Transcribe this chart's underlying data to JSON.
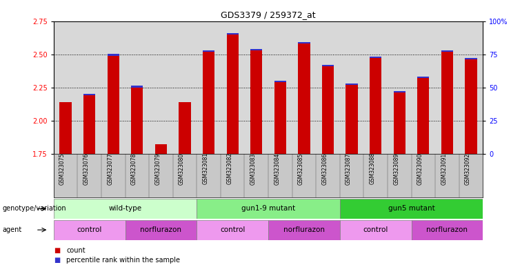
{
  "title": "GDS3379 / 259372_at",
  "samples": [
    "GSM323075",
    "GSM323076",
    "GSM323077",
    "GSM323078",
    "GSM323079",
    "GSM323080",
    "GSM323081",
    "GSM323082",
    "GSM323083",
    "GSM323084",
    "GSM323085",
    "GSM323086",
    "GSM323087",
    "GSM323088",
    "GSM323089",
    "GSM323090",
    "GSM323091",
    "GSM323092"
  ],
  "counts": [
    2.14,
    2.19,
    2.49,
    2.25,
    1.82,
    2.14,
    2.52,
    2.65,
    2.53,
    2.29,
    2.58,
    2.41,
    2.27,
    2.47,
    2.21,
    2.32,
    2.52,
    2.46
  ],
  "has_percentile": [
    false,
    true,
    true,
    true,
    false,
    false,
    true,
    true,
    true,
    true,
    true,
    true,
    true,
    true,
    true,
    true,
    true,
    true
  ],
  "ymin": 1.75,
  "ymax": 2.75,
  "yticks_left": [
    1.75,
    2.0,
    2.25,
    2.5,
    2.75
  ],
  "yticks_right": [
    0,
    25,
    50,
    75,
    100
  ],
  "ytick_labels_right": [
    "0",
    "25",
    "50",
    "75",
    "100%"
  ],
  "bar_color": "#cc0000",
  "percentile_color": "#3333cc",
  "bar_width": 0.5,
  "pct_bar_height": 0.012,
  "genotype_groups": [
    {
      "label": "wild-type",
      "start": 0,
      "end": 5,
      "color": "#ccffcc"
    },
    {
      "label": "gun1-9 mutant",
      "start": 6,
      "end": 11,
      "color": "#88ee88"
    },
    {
      "label": "gun5 mutant",
      "start": 12,
      "end": 17,
      "color": "#33cc33"
    }
  ],
  "agent_groups": [
    {
      "label": "control",
      "start": 0,
      "end": 2,
      "color": "#ee99ee"
    },
    {
      "label": "norflurazon",
      "start": 3,
      "end": 5,
      "color": "#cc55cc"
    },
    {
      "label": "control",
      "start": 6,
      "end": 8,
      "color": "#ee99ee"
    },
    {
      "label": "norflurazon",
      "start": 9,
      "end": 11,
      "color": "#cc55cc"
    },
    {
      "label": "control",
      "start": 12,
      "end": 14,
      "color": "#ee99ee"
    },
    {
      "label": "norflurazon",
      "start": 15,
      "end": 17,
      "color": "#cc55cc"
    }
  ],
  "legend_items": [
    {
      "label": "count",
      "color": "#cc0000"
    },
    {
      "label": "percentile rank within the sample",
      "color": "#3333cc"
    }
  ],
  "label_genotype": "genotype/variation",
  "label_agent": "agent",
  "bg_color": "#ffffff",
  "plot_bg_color": "#d8d8d8",
  "tick_area_color": "#c8c8c8"
}
